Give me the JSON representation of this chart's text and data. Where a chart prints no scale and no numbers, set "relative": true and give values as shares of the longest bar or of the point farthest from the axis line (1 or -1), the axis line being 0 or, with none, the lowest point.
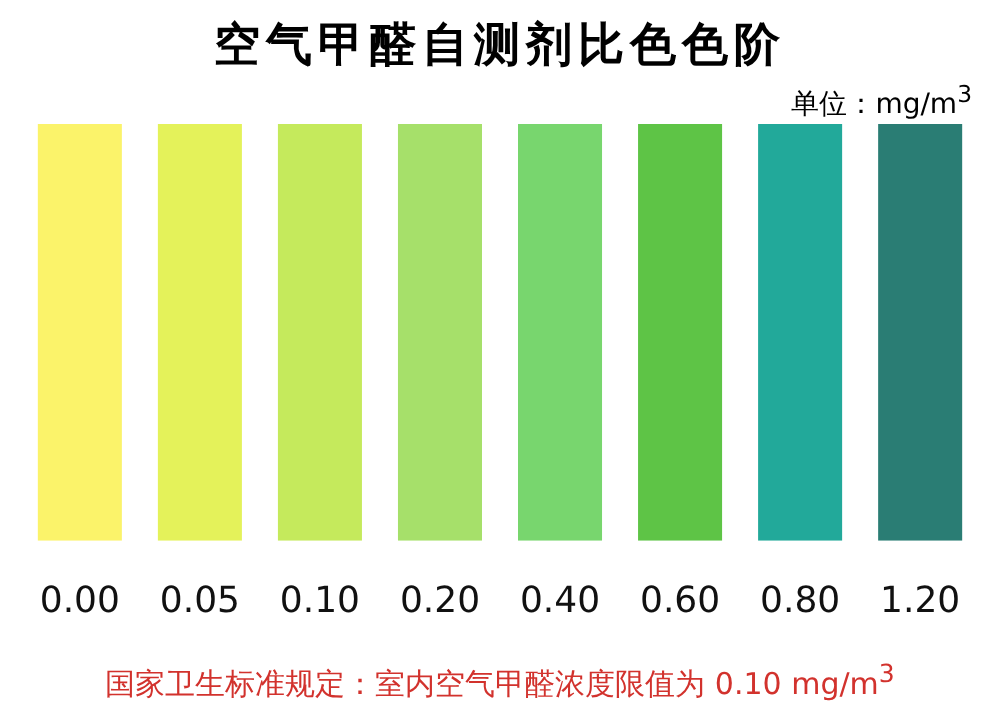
{
  "chart_data": {
    "type": "bar",
    "title": "空气甲醛自测剂比色色阶",
    "categories": [
      "0.00",
      "0.05",
      "0.10",
      "0.20",
      "0.40",
      "0.60",
      "0.80",
      "1.20"
    ],
    "values": [
      1,
      1,
      1,
      1,
      1,
      1,
      1,
      1
    ],
    "relative": true,
    "colors": [
      "#fbf36a",
      "#e4f25a",
      "#c5ea5c",
      "#a6e06a",
      "#78d66e",
      "#5ec446",
      "#22a99a",
      "#2a7d74"
    ],
    "annotations": [
      "单位：mg/m$^{3}$",
      "国家卫生标准规定：室内空气甲醛浓度限值为 0.10 mg/m$^{3}$"
    ]
  }
}
